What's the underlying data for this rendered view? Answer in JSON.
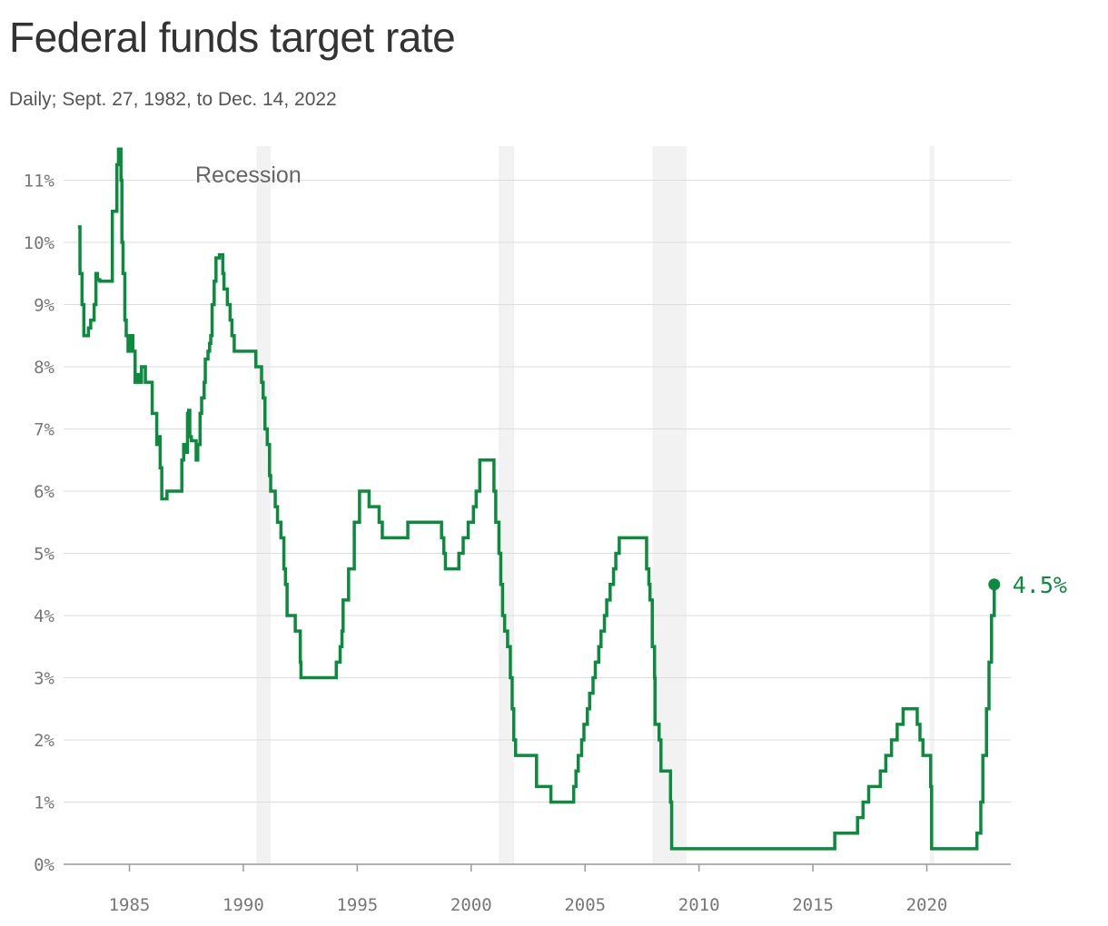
{
  "header": {
    "title": "Federal funds target rate",
    "subtitle": "Daily; Sept. 27, 1982, to Dec. 14, 2022"
  },
  "chart_data": {
    "type": "line",
    "title": "Federal funds target rate",
    "subtitle": "Daily; Sept. 27, 1982, to Dec. 14, 2022",
    "xlabel": "",
    "ylabel": "",
    "xlim": [
      1982.5,
      2023.8
    ],
    "ylim": [
      0,
      11.5
    ],
    "x_ticks": [
      1985,
      1990,
      1995,
      2000,
      2005,
      2010,
      2015,
      2020
    ],
    "x_tick_labels": [
      "1985",
      "1990",
      "1995",
      "2000",
      "2005",
      "2010",
      "2015",
      "2020"
    ],
    "y_ticks": [
      0,
      1,
      2,
      3,
      4,
      5,
      6,
      7,
      8,
      9,
      10,
      11
    ],
    "y_tick_labels": [
      "0%",
      "1%",
      "2%",
      "3%",
      "4%",
      "5%",
      "6%",
      "7%",
      "8%",
      "9%",
      "10%",
      "11%"
    ],
    "grid": true,
    "line_color": "#0c8a3e",
    "recession_color": "#f2f2f2",
    "recession_label": "Recession",
    "recessions": [
      {
        "start": 1990.58,
        "end": 1991.21
      },
      {
        "start": 2001.21,
        "end": 2001.88
      },
      {
        "start": 2007.96,
        "end": 2009.46
      },
      {
        "start": 2020.13,
        "end": 2020.33
      }
    ],
    "end_label": "4.5%",
    "series": [
      {
        "x": [
          1982.74,
          1982.83,
          1982.92,
          1983.0,
          1983.05,
          1983.2,
          1983.3,
          1983.45,
          1983.53,
          1983.6,
          1983.7,
          1984.0,
          1984.25,
          1984.45,
          1984.52,
          1984.58,
          1984.63,
          1984.67,
          1984.72,
          1984.8,
          1984.86,
          1984.94,
          1984.98,
          1985.05,
          1985.15,
          1985.25,
          1985.3,
          1985.37,
          1985.45,
          1985.53,
          1985.6,
          1985.7,
          1985.9,
          1986.0,
          1986.2,
          1986.28,
          1986.35,
          1986.42,
          1986.5,
          1986.55,
          1986.6,
          1986.65,
          1986.8,
          1987.0,
          1987.3,
          1987.38,
          1987.45,
          1987.55,
          1987.6,
          1987.65,
          1987.72,
          1987.8,
          1987.93,
          1988.0,
          1988.1,
          1988.17,
          1988.28,
          1988.33,
          1988.4,
          1988.45,
          1988.52,
          1988.57,
          1988.63,
          1988.72,
          1988.8,
          1988.87,
          1988.95,
          1989.1,
          1989.15,
          1989.3,
          1989.35,
          1989.42,
          1989.5,
          1989.6,
          1989.7,
          1989.8,
          1990.0,
          1990.55,
          1990.8,
          1990.87,
          1990.95,
          1991.05,
          1991.15,
          1991.2,
          1991.3,
          1991.4,
          1991.5,
          1991.65,
          1991.78,
          1991.85,
          1991.92,
          1991.96,
          1992.28,
          1992.5,
          1992.53,
          1994.08,
          1994.25,
          1994.33,
          1994.38,
          1994.62,
          1994.87,
          1995.1,
          1995.52,
          1995.96,
          1996.1,
          1997.22,
          1998.7,
          1998.8,
          1998.87,
          1999.46,
          1999.65,
          1999.87,
          2000.1,
          2000.22,
          2000.38,
          2001.0,
          2001.08,
          2001.22,
          2001.3,
          2001.38,
          2001.47,
          2001.6,
          2001.72,
          2001.8,
          2001.87,
          2001.95,
          2002.87,
          2003.5,
          2004.5,
          2004.6,
          2004.7,
          2004.85,
          2004.95,
          2005.1,
          2005.2,
          2005.35,
          2005.45,
          2005.6,
          2005.7,
          2005.85,
          2005.95,
          2006.1,
          2006.25,
          2006.35,
          2006.5,
          2007.7,
          2007.8,
          2007.85,
          2007.95,
          2008.05,
          2008.07,
          2008.25,
          2008.33,
          2008.75,
          2008.8,
          2008.96,
          2015.96,
          2016.96,
          2017.2,
          2017.45,
          2017.96,
          2018.2,
          2018.45,
          2018.7,
          2018.96,
          2019.58,
          2019.7,
          2019.83,
          2020.17,
          2020.21,
          2022.2,
          2022.37,
          2022.46,
          2022.62,
          2022.73,
          2022.84,
          2022.96
        ],
        "values": [
          10.25,
          9.5,
          9.0,
          8.5,
          8.5,
          8.625,
          8.75,
          9.0,
          9.5,
          9.4,
          9.375,
          9.375,
          10.5,
          11.25,
          11.5,
          11.5,
          11.0,
          10.0,
          9.5,
          8.75,
          8.5,
          8.25,
          8.25,
          8.5,
          8.25,
          7.75,
          7.75,
          7.875,
          7.75,
          8.0,
          8.0,
          7.75,
          7.75,
          7.25,
          6.75,
          6.875,
          6.375,
          5.875,
          5.875,
          5.875,
          5.875,
          6.0,
          6.0,
          6.0,
          6.5,
          6.75,
          6.625,
          7.25,
          7.3,
          6.875,
          6.81,
          6.81,
          6.5,
          6.75,
          7.25,
          7.5,
          7.75,
          8.125,
          8.125,
          8.25,
          8.375,
          8.5,
          9.0,
          9.375,
          9.75,
          9.75,
          9.8,
          9.5,
          9.25,
          9.0,
          9.0,
          8.75,
          8.5,
          8.25,
          8.25,
          8.25,
          8.25,
          8.0,
          7.75,
          7.5,
          7.0,
          6.75,
          6.25,
          6.0,
          6.0,
          5.75,
          5.5,
          5.25,
          4.75,
          4.5,
          4.0,
          4.0,
          3.75,
          3.25,
          3.0,
          3.25,
          3.5,
          3.75,
          4.25,
          4.75,
          5.5,
          6.0,
          5.75,
          5.5,
          5.25,
          5.5,
          5.25,
          5.0,
          4.75,
          5.0,
          5.25,
          5.5,
          5.75,
          6.0,
          6.5,
          6.0,
          5.5,
          5.0,
          4.5,
          4.0,
          3.75,
          3.5,
          3.0,
          2.5,
          2.0,
          1.75,
          1.25,
          1.0,
          1.25,
          1.5,
          1.75,
          2.0,
          2.25,
          2.5,
          2.75,
          3.0,
          3.25,
          3.5,
          3.75,
          4.0,
          4.25,
          4.5,
          4.75,
          5.0,
          5.25,
          4.75,
          4.5,
          4.25,
          3.5,
          3.0,
          2.25,
          2.0,
          1.5,
          1.0,
          0.25,
          0.25,
          0.5,
          0.75,
          1.0,
          1.25,
          1.5,
          1.75,
          2.0,
          2.25,
          2.5,
          2.25,
          2.0,
          1.75,
          1.25,
          0.25,
          0.5,
          1.0,
          1.75,
          2.5,
          3.25,
          4.0,
          4.5
        ]
      }
    ]
  }
}
